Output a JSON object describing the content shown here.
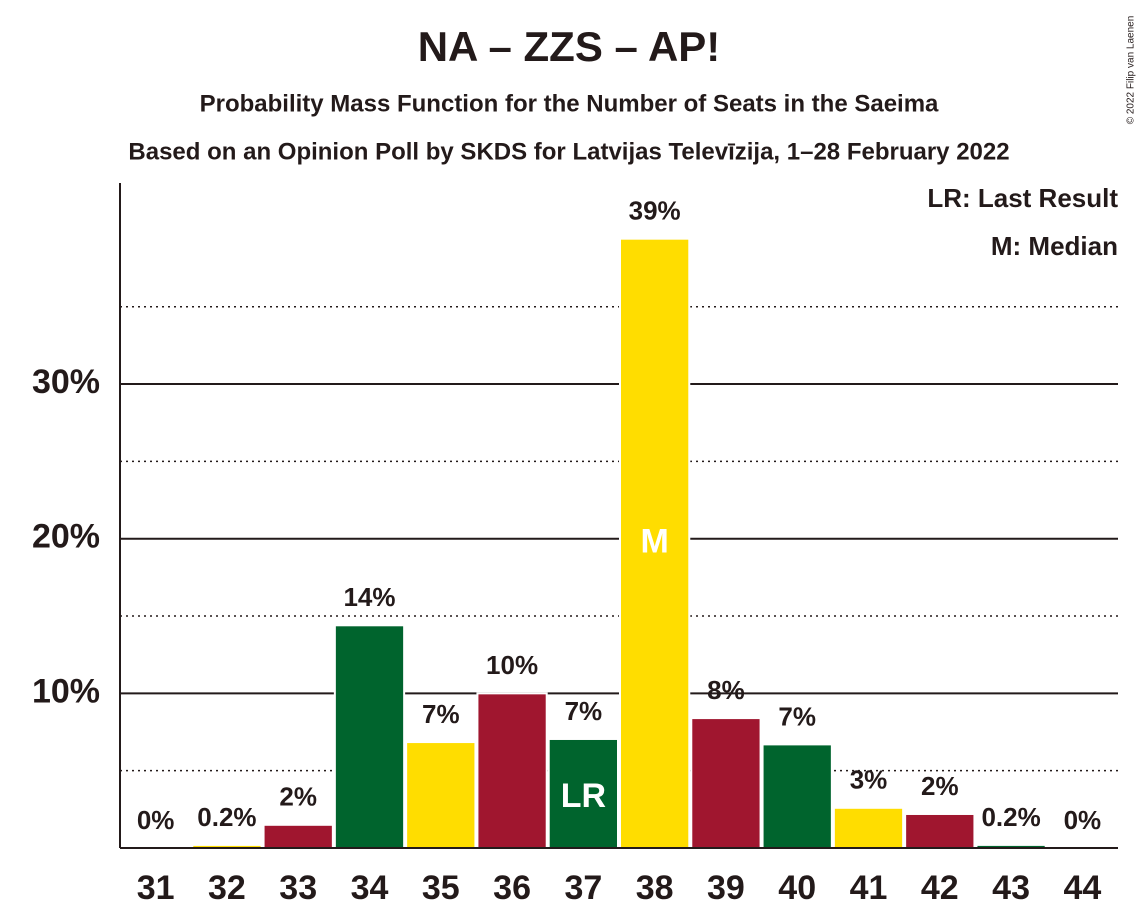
{
  "chart_data": {
    "type": "bar",
    "title": "NA – ZZS – AP!",
    "subtitle": "Probability Mass Function for the Number of Seats in the Saeima",
    "subtitle2": "Based on an Opinion Poll by SKDS for Latvijas Televīzija, 1–28 February 2022",
    "copyright": "© 2022 Filip van Laenen",
    "categories": [
      "31",
      "32",
      "33",
      "34",
      "35",
      "36",
      "37",
      "38",
      "39",
      "40",
      "41",
      "42",
      "43",
      "44"
    ],
    "values": [
      0,
      0.2,
      1.5,
      14.4,
      6.85,
      10.0,
      7.05,
      39.4,
      8.4,
      6.7,
      2.6,
      2.2,
      0.2,
      0
    ],
    "value_labels": [
      "0%",
      "0.2%",
      "2%",
      "14%",
      "7%",
      "10%",
      "7%",
      "39%",
      "8%",
      "7%",
      "3%",
      "2%",
      "0.2%",
      "0%"
    ],
    "colors": [
      "#00642d",
      "#ffdd00",
      "#a0162f",
      "#00642d",
      "#ffdd00",
      "#a0162f",
      "#00642d",
      "#ffdd00",
      "#a0162f",
      "#00642d",
      "#ffdd00",
      "#a0162f",
      "#00642d",
      "#ffdd00"
    ],
    "ylim": [
      0,
      43
    ],
    "yticks": [
      {
        "value": 10,
        "label": "10%"
      },
      {
        "value": 20,
        "label": "20%"
      },
      {
        "value": 30,
        "label": "30%"
      }
    ],
    "minor_yticks": [
      5,
      15,
      25,
      35
    ],
    "grid": true,
    "annotations": [
      {
        "category": "37",
        "label": "LR"
      },
      {
        "category": "38",
        "label": "M"
      }
    ],
    "legend": [
      "LR: Last Result",
      "M: Median"
    ]
  }
}
